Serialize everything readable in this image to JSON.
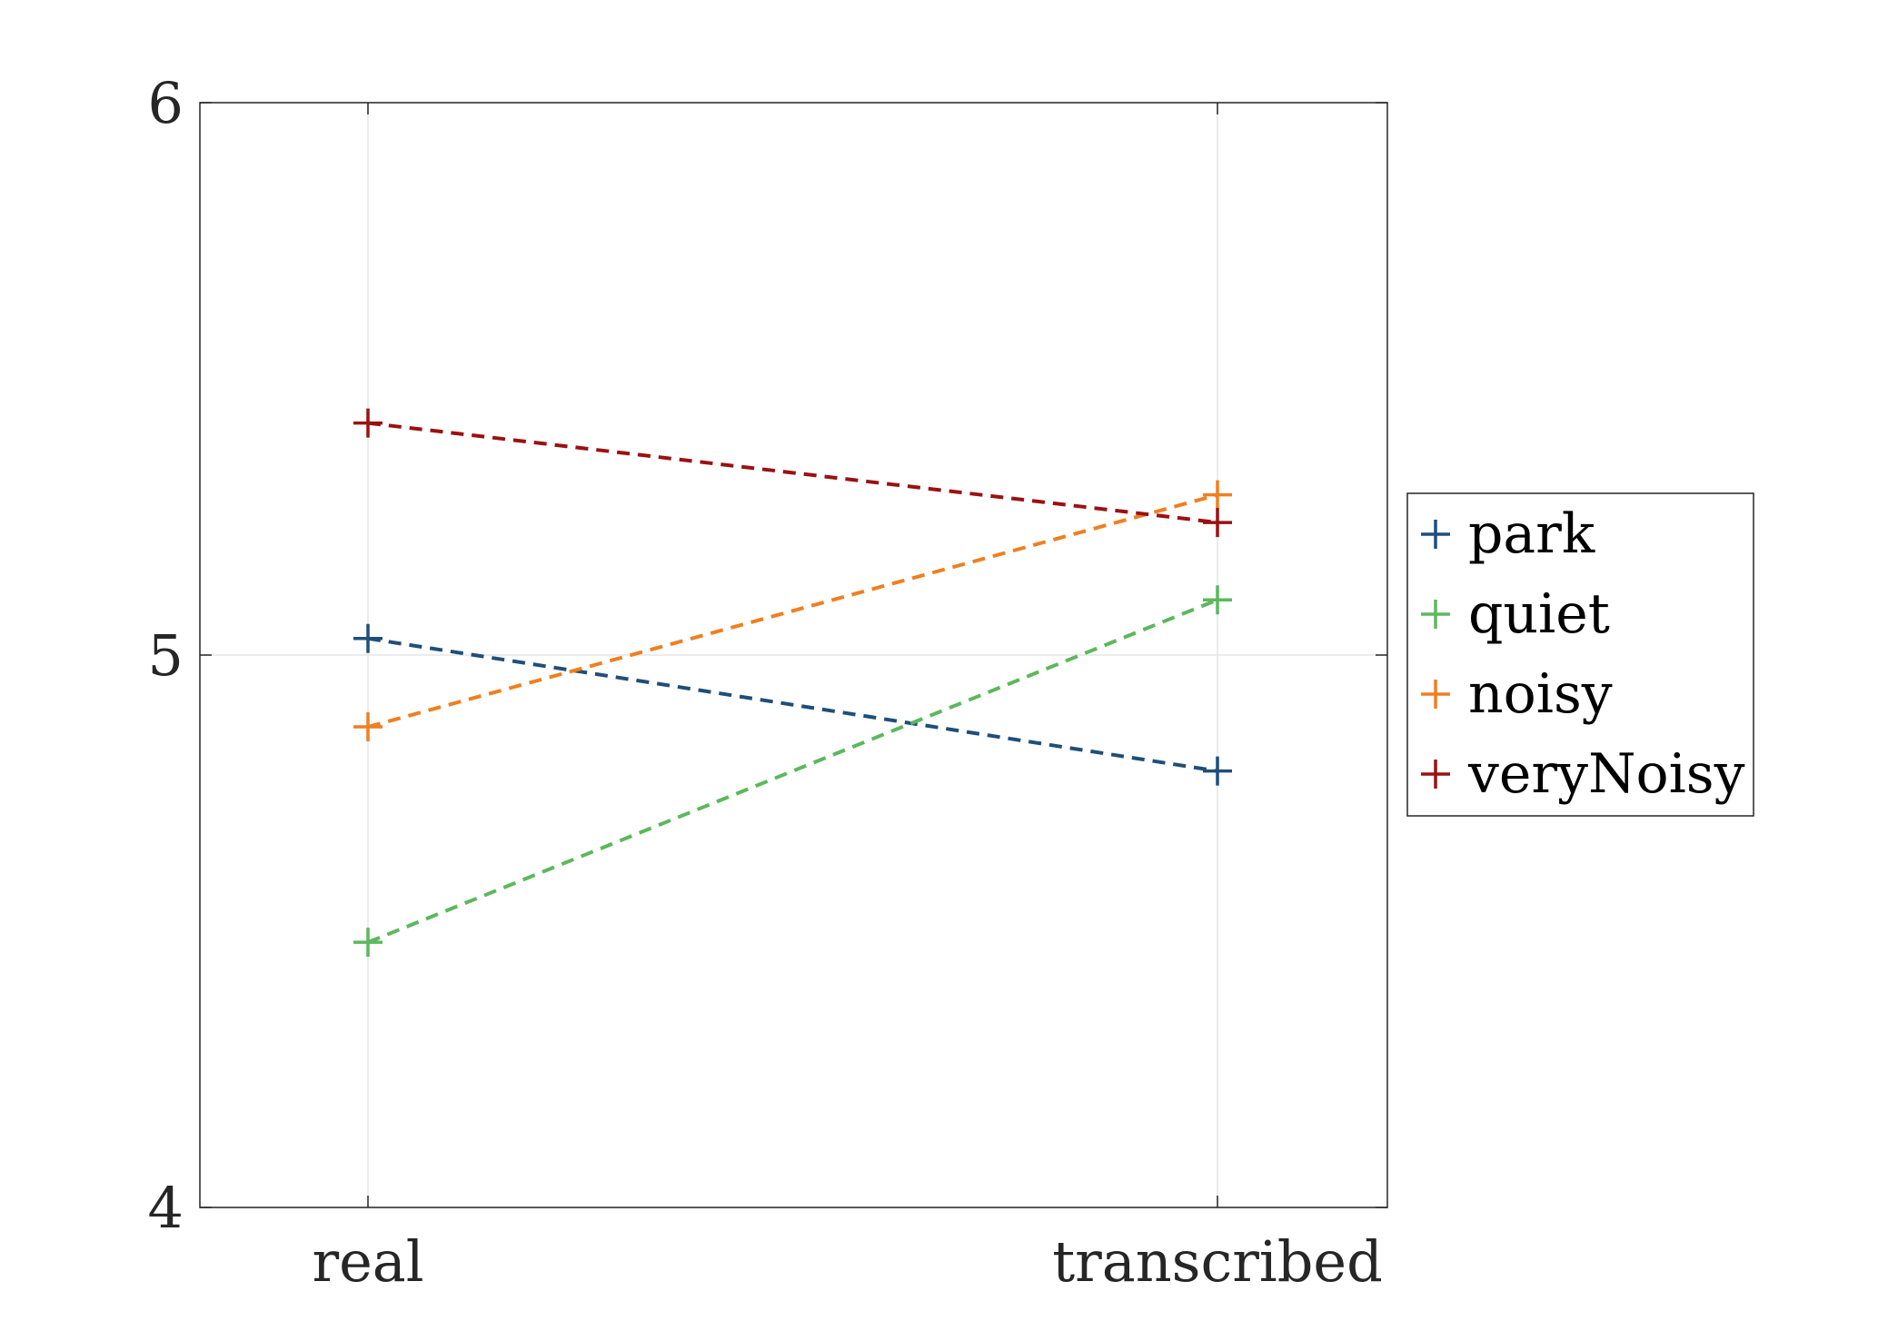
{
  "chart_data": {
    "type": "line",
    "title": "",
    "xlabel": "",
    "ylabel": "",
    "categories": [
      "real",
      "transcribed"
    ],
    "ylim": [
      4,
      6
    ],
    "yticks": [
      "4",
      "5",
      "6"
    ],
    "grid": true,
    "legend_position": "outside-right",
    "line_style": "dashed",
    "marker": "plus",
    "series": [
      {
        "name": "park",
        "values": [
          5.03,
          4.79
        ],
        "color": "#1f4e79"
      },
      {
        "name": "quiet",
        "values": [
          4.48,
          5.1
        ],
        "color": "#5cb85c"
      },
      {
        "name": "noisy",
        "values": [
          4.87,
          5.29
        ],
        "color": "#f07f20"
      },
      {
        "name": "veryNoisy",
        "values": [
          5.42,
          5.24
        ],
        "color": "#9b1111"
      }
    ]
  }
}
